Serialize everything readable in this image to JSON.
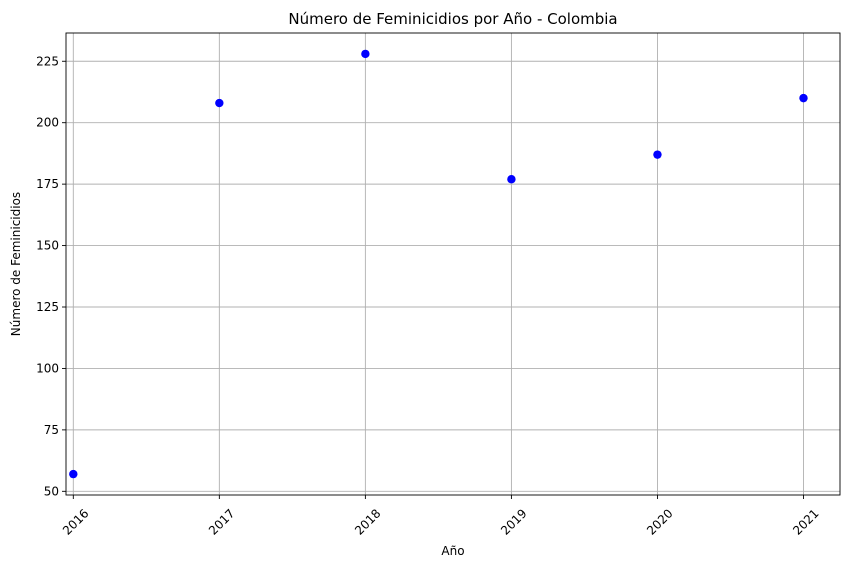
{
  "chart_data": {
    "type": "scatter",
    "title": "Número de Feminicidios por Año - Colombia",
    "xlabel": "Año",
    "ylabel": "Número de Feminicidios",
    "x": [
      2016,
      2017,
      2018,
      2019,
      2020,
      2021
    ],
    "y": [
      57,
      208,
      228,
      177,
      187,
      210
    ],
    "xticks": [
      "2016",
      "2017",
      "2018",
      "2019",
      "2020",
      "2021"
    ],
    "yticks": [
      50,
      75,
      100,
      125,
      150,
      175,
      200,
      225
    ],
    "xlim": [
      2015.95,
      2021.25
    ],
    "ylim": [
      48.5,
      236.5
    ],
    "grid": true,
    "xtick_rotation": 45,
    "marker_color": "#0000ff"
  }
}
